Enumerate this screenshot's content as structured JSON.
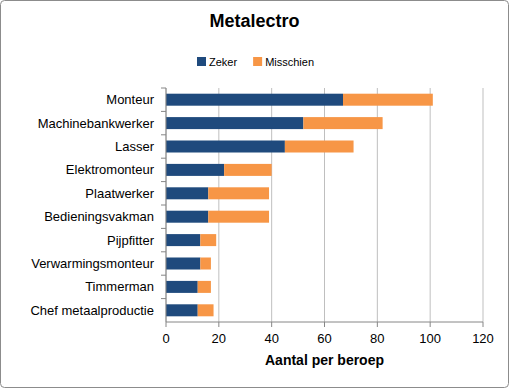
{
  "chart_data": {
    "type": "bar",
    "title": "Metalectro",
    "orientation": "horizontal",
    "stacked": true,
    "categories": [
      "Monteur",
      "Machinebankwerker",
      "Lasser",
      "Elektromonteur",
      "Plaatwerker",
      "Bedieningsvakman",
      "Pijpfitter",
      "Verwarmingsmonteur",
      "Timmerman",
      "Chef metaalproductie"
    ],
    "series": [
      {
        "name": "Zeker",
        "color": "#1f4a7d",
        "values": [
          67,
          52,
          45,
          22,
          16,
          16,
          13,
          13,
          12,
          12
        ]
      },
      {
        "name": "Misschien",
        "color": "#f79646",
        "values": [
          34,
          30,
          26,
          18,
          23,
          23,
          6,
          4,
          5,
          6
        ]
      }
    ],
    "x_label": "Aantal per beroep",
    "xlim": [
      0,
      120
    ],
    "xticks": [
      0,
      20,
      40,
      60,
      80,
      100,
      120
    ],
    "grid": true,
    "legend": "top"
  }
}
